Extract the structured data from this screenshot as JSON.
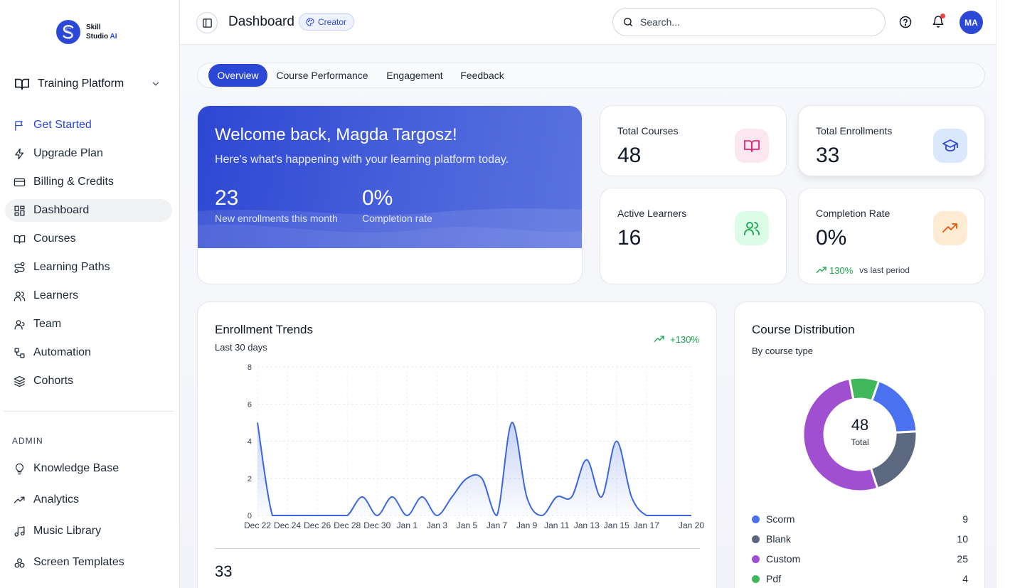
{
  "brand": {
    "name_line1": "Skill",
    "name_line2": "Studio",
    "name_ai": "AI",
    "logo_color": "#2b47d6"
  },
  "workspace": {
    "label": "Training Platform"
  },
  "sidebar": {
    "items": [
      {
        "label": "Get Started",
        "icon": "flag-icon"
      },
      {
        "label": "Upgrade Plan",
        "icon": "zap-icon"
      },
      {
        "label": "Billing & Credits",
        "icon": "credit-card-icon"
      },
      {
        "label": "Dashboard",
        "icon": "grid-icon"
      },
      {
        "label": "Courses",
        "icon": "book-open-icon"
      },
      {
        "label": "Learning Paths",
        "icon": "route-icon"
      },
      {
        "label": "Learners",
        "icon": "users-icon"
      },
      {
        "label": "Team",
        "icon": "user-group-icon"
      },
      {
        "label": "Automation",
        "icon": "workflow-icon"
      },
      {
        "label": "Cohorts",
        "icon": "layers-icon"
      }
    ],
    "admin_label": "ADMIN",
    "admin_items": [
      {
        "label": "Knowledge Base",
        "icon": "lightbulb-icon"
      },
      {
        "label": "Analytics",
        "icon": "trending-up-icon"
      },
      {
        "label": "Music Library",
        "icon": "music-icon"
      },
      {
        "label": "Screen Templates",
        "icon": "shapes-icon"
      }
    ]
  },
  "header": {
    "title": "Dashboard",
    "badge": "Creator",
    "search_placeholder": "Search...",
    "avatar_initials": "MA"
  },
  "tabs": [
    "Overview",
    "Course Performance",
    "Engagement",
    "Feedback"
  ],
  "welcome": {
    "title": "Welcome back, Magda Targosz!",
    "subtitle": "Here's what's happening with your learning platform today.",
    "stat1_value": "23",
    "stat1_label": "New enrollments this month",
    "stat2_value": "0%",
    "stat2_label": "Completion rate"
  },
  "stats": [
    {
      "label": "Total Courses",
      "value": "48",
      "icon": "book-open-icon",
      "bg": "#fce7f0",
      "color": "#db2777"
    },
    {
      "label": "Total Enrollments",
      "value": "33",
      "icon": "graduation-cap-icon",
      "bg": "#dbe7fd",
      "color": "#2b47d6"
    },
    {
      "label": "Active Learners",
      "value": "16",
      "icon": "users-icon",
      "bg": "#dcfce7",
      "color": "#16a34a"
    },
    {
      "label": "Completion Rate",
      "value": "0%",
      "icon": "trending-up-icon",
      "bg": "#fdebd3",
      "color": "#ea580c",
      "trend": "130%",
      "trend_note": "vs last period"
    }
  ],
  "enrollment": {
    "title": "Enrollment Trends",
    "subtitle": "Last 30 days",
    "trend": "+130%",
    "total": "33"
  },
  "chart_data": {
    "type": "area",
    "x_ticks": [
      "Dec 22",
      "Dec 24",
      "Dec 26",
      "Dec 28",
      "Dec 30",
      "Jan 1",
      "Jan 3",
      "Jan 5",
      "Jan 7",
      "Jan 9",
      "Jan 11",
      "Jan 13",
      "Jan 15",
      "Jan 17",
      "Jan 20"
    ],
    "x": [
      "Dec 22",
      "Dec 23",
      "Dec 24",
      "Dec 25",
      "Dec 26",
      "Dec 27",
      "Dec 28",
      "Dec 29",
      "Dec 30",
      "Dec 31",
      "Jan 1",
      "Jan 2",
      "Jan 3",
      "Jan 4",
      "Jan 5",
      "Jan 6",
      "Jan 7",
      "Jan 8",
      "Jan 9",
      "Jan 10",
      "Jan 11",
      "Jan 12",
      "Jan 13",
      "Jan 14",
      "Jan 15",
      "Jan 16",
      "Jan 17",
      "Jan 18",
      "Jan 19",
      "Jan 20"
    ],
    "values": [
      5,
      0,
      0,
      0,
      0,
      0,
      0,
      1,
      0,
      1,
      0,
      1,
      0,
      1,
      2,
      2,
      0,
      5,
      1,
      0,
      1,
      1,
      3,
      1,
      4,
      1,
      0,
      0,
      0,
      0
    ],
    "ylim": [
      0,
      8
    ],
    "y_ticks": [
      0,
      2,
      4,
      6,
      8
    ],
    "grid": true,
    "line_color": "#3b66e0"
  },
  "distribution": {
    "title": "Course Distribution",
    "subtitle": "By course type",
    "center_value": "48",
    "center_label": "Total",
    "chart_data": {
      "type": "pie",
      "labels": [
        "Scorm",
        "Blank",
        "Custom",
        "Pdf"
      ],
      "values": [
        9,
        10,
        25,
        4
      ],
      "colors": [
        "#4a72f0",
        "#5c6780",
        "#a14fd1",
        "#3fb75a"
      ]
    }
  }
}
